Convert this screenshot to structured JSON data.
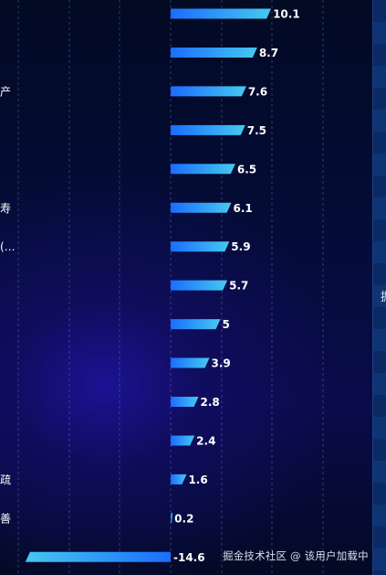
{
  "chart_data": {
    "type": "bar",
    "orientation": "horizontal",
    "categories": [
      "",
      "",
      "产",
      "",
      "",
      "寿",
      "(…",
      "",
      "",
      "",
      "",
      "",
      "疏",
      "善",
      ""
    ],
    "values": [
      10.1,
      8.7,
      7.6,
      7.5,
      6.5,
      6.1,
      5.9,
      5.7,
      5,
      3.9,
      2.8,
      2.4,
      1.6,
      0.2,
      -14.6
    ],
    "bar_gradient": [
      "#1a6dff",
      "#45c9f0"
    ],
    "grid": true,
    "grid_style": "dashed-vertical"
  },
  "colors": {
    "background": "#030b24",
    "panel": "#0b2a63",
    "label": "#ffffff"
  },
  "right_panel": {
    "edge_char": "掘"
  },
  "watermark": "掘金技术社区 @ 该用户加载中"
}
